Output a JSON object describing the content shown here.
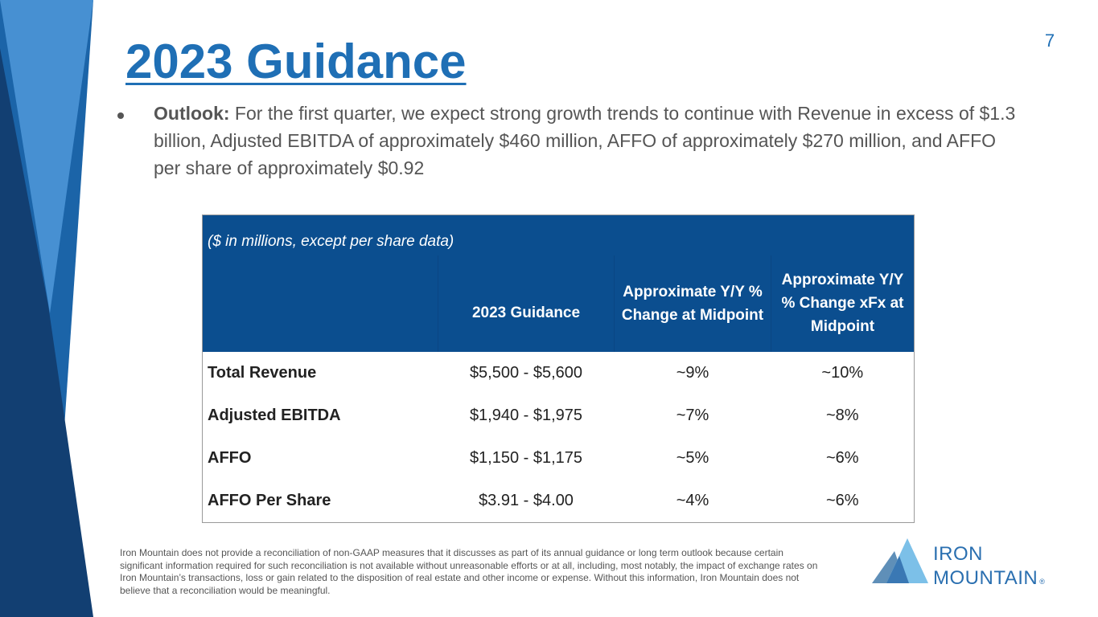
{
  "slide": {
    "page_number": "7",
    "title": "2023 Guidance"
  },
  "outlook": {
    "label": "Outlook:",
    "text": " For the first quarter, we expect strong growth trends to continue with Revenue in excess of $1.3 billion, Adjusted EBITDA of approximately $460 million, AFFO of approximately $270 million, and AFFO per share of approximately $0.92"
  },
  "table": {
    "caption": "($ in millions, except per share data)",
    "headers": [
      "2023 Guidance",
      "Approximate Y/Y % Change at Midpoint",
      "Approximate Y/Y % Change xFx at Midpoint"
    ],
    "rows": [
      {
        "label": "Total Revenue",
        "guidance": "$5,500 - $5,600",
        "change": "~9%",
        "change_xfx": "~10%"
      },
      {
        "label": "Adjusted EBITDA",
        "guidance": "$1,940 - $1,975",
        "change": "~7%",
        "change_xfx": "~8%"
      },
      {
        "label": "AFFO",
        "guidance": "$1,150 - $1,175",
        "change": "~5%",
        "change_xfx": "~6%"
      },
      {
        "label": "AFFO Per Share",
        "guidance": "$3.91 - $4.00",
        "change": "~4%",
        "change_xfx": "~6%"
      }
    ]
  },
  "footnote": "Iron Mountain does not provide a reconciliation of non-GAAP measures that it discusses as part of its annual guidance or long term outlook because certain significant information required for such reconciliation is not available without unreasonable efforts or at all, including, most notably, the impact of exchange rates on Iron Mountain’s transactions, loss or gain related to the disposition of real estate and other income or expense. Without this information, Iron Mountain does not believe that a reconciliation would be meaningful.",
  "logo": {
    "line1": "IRON",
    "line2": "MOUNTAIN",
    "mark": "®"
  },
  "colors": {
    "title_blue": "#1f6fb5",
    "header_blue": "#0b4e8f",
    "deco_dark": "#0f3d6e",
    "deco_mid": "#1b64a8",
    "deco_light": "#3f8fd0"
  }
}
